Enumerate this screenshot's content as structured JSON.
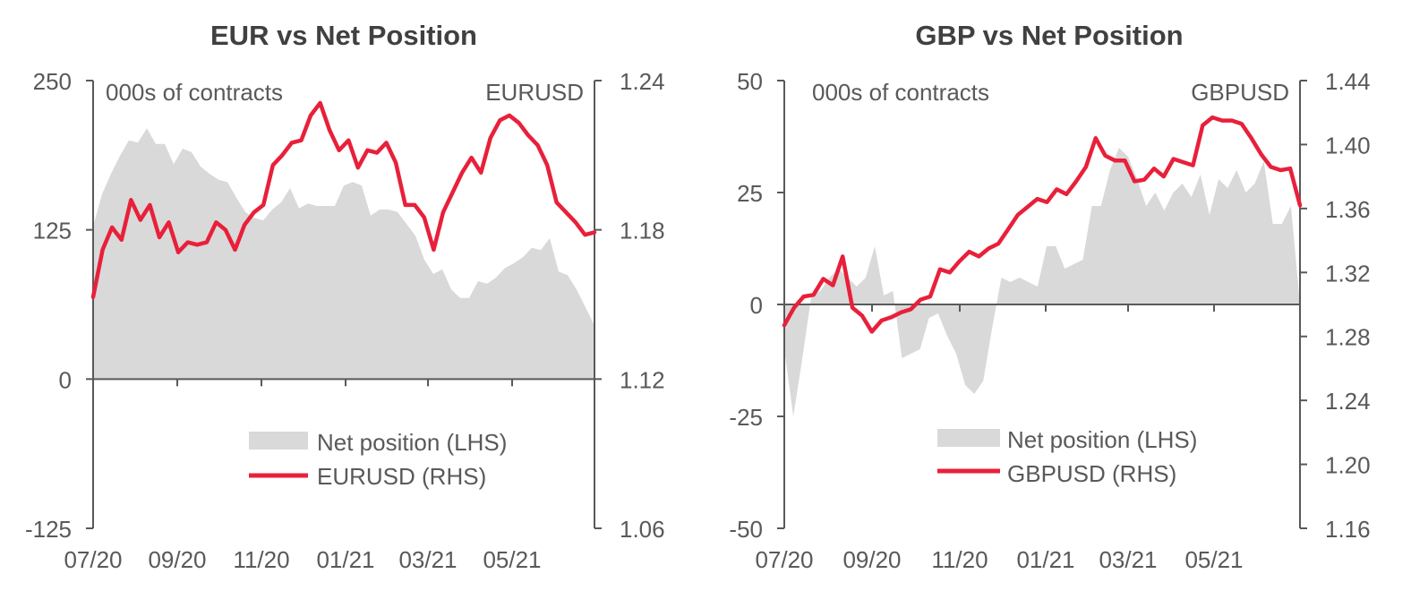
{
  "colors": {
    "area": "#d9d9d9",
    "line": "#e8203a",
    "axis": "#595959",
    "text": "#595959",
    "title": "#404040"
  },
  "chart_data": [
    {
      "type": "area",
      "title": "EUR  vs Net Position",
      "left_note": "000s of contracts",
      "right_note": "EURUSD",
      "x_tick_labels": [
        "07/20",
        "09/20",
        "11/20",
        "01/21",
        "03/21",
        "05/21"
      ],
      "left_axis": {
        "range": [
          -125,
          250
        ],
        "ticks": [
          "250",
          "125",
          "0",
          "-125"
        ],
        "tick_values": [
          250,
          125,
          0,
          -125
        ]
      },
      "right_axis": {
        "range": [
          1.06,
          1.24
        ],
        "ticks": [
          "1.24",
          "1.18",
          "1.12",
          "1.06"
        ],
        "tick_values": [
          1.24,
          1.18,
          1.12,
          1.06
        ]
      },
      "series": [
        {
          "name": "Net position (LHS)",
          "kind": "area",
          "axis": "left",
          "values": [
            128,
            155,
            172,
            187,
            200,
            198,
            210,
            197,
            197,
            180,
            193,
            190,
            178,
            172,
            167,
            165,
            152,
            140,
            135,
            133,
            142,
            148,
            160,
            143,
            147,
            145,
            145,
            145,
            162,
            165,
            162,
            137,
            142,
            142,
            140,
            130,
            120,
            100,
            88,
            92,
            75,
            68,
            68,
            82,
            80,
            85,
            93,
            97,
            102,
            110,
            108,
            118,
            90,
            87,
            75,
            60,
            45
          ]
        },
        {
          "name": "EURUSD (RHS)",
          "kind": "line",
          "axis": "right",
          "values": [
            1.153,
            1.172,
            1.181,
            1.176,
            1.192,
            1.184,
            1.19,
            1.177,
            1.183,
            1.171,
            1.175,
            1.174,
            1.175,
            1.183,
            1.18,
            1.172,
            1.182,
            1.187,
            1.19,
            1.206,
            1.21,
            1.215,
            1.216,
            1.226,
            1.231,
            1.22,
            1.212,
            1.216,
            1.205,
            1.212,
            1.211,
            1.215,
            1.207,
            1.19,
            1.19,
            1.185,
            1.172,
            1.187,
            1.195,
            1.203,
            1.209,
            1.203,
            1.217,
            1.224,
            1.226,
            1.223,
            1.218,
            1.214,
            1.206,
            1.191,
            1.187,
            1.183,
            1.178,
            1.179
          ]
        }
      ],
      "legend_placement": "bottom-right",
      "grid": false
    },
    {
      "type": "area",
      "title": "GBP  vs Net Position",
      "left_note": "000s of contracts",
      "right_note": "GBPUSD",
      "x_tick_labels": [
        "07/20",
        "09/20",
        "11/20",
        "01/21",
        "03/21",
        "05/21"
      ],
      "left_axis": {
        "range": [
          -50,
          50
        ],
        "ticks": [
          "50",
          "25",
          "0",
          "-25",
          "-50"
        ],
        "tick_values": [
          50,
          25,
          0,
          -25,
          -50
        ]
      },
      "right_axis": {
        "range": [
          1.16,
          1.44
        ],
        "ticks": [
          "1.44",
          "1.40",
          "1.36",
          "1.32",
          "1.28",
          "1.24",
          "1.20",
          "1.16"
        ],
        "tick_values": [
          1.44,
          1.4,
          1.36,
          1.32,
          1.28,
          1.24,
          1.2,
          1.16
        ]
      },
      "series": [
        {
          "name": "Net position (LHS)",
          "kind": "area",
          "axis": "left",
          "values": [
            -10,
            -25,
            -12,
            2,
            3,
            6,
            8,
            6,
            4,
            6,
            13,
            2,
            3,
            -12,
            -11,
            -10,
            -3,
            -2,
            -7,
            -11,
            -18,
            -20,
            -17,
            -5,
            6,
            5,
            6,
            5,
            4,
            13,
            13,
            8,
            9,
            10,
            22,
            22,
            30,
            35,
            33,
            28,
            22,
            25,
            21,
            25,
            27,
            24,
            29,
            20,
            28,
            26,
            30,
            25,
            27,
            32,
            18,
            18,
            22,
            0
          ]
        },
        {
          "name": "GBPUSD (RHS)",
          "kind": "line",
          "axis": "right",
          "values": [
            1.287,
            1.298,
            1.305,
            1.306,
            1.316,
            1.312,
            1.33,
            1.298,
            1.293,
            1.283,
            1.29,
            1.292,
            1.295,
            1.297,
            1.303,
            1.305,
            1.322,
            1.32,
            1.327,
            1.333,
            1.33,
            1.335,
            1.338,
            1.347,
            1.356,
            1.361,
            1.366,
            1.364,
            1.372,
            1.369,
            1.377,
            1.386,
            1.404,
            1.393,
            1.39,
            1.39,
            1.377,
            1.378,
            1.385,
            1.38,
            1.391,
            1.389,
            1.387,
            1.412,
            1.417,
            1.415,
            1.415,
            1.413,
            1.404,
            1.394,
            1.386,
            1.384,
            1.385,
            1.362
          ]
        }
      ],
      "legend_placement": "bottom-right",
      "grid": false
    }
  ]
}
